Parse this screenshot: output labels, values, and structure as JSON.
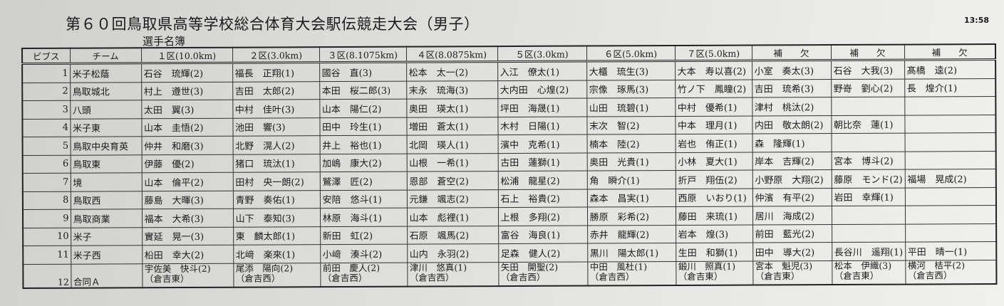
{
  "title": "第６０回鳥取県高等学校総合体育大会駅伝競走大会（男子）",
  "subtitle": "選手名簿",
  "time": "13:58",
  "headers": [
    "ビブス",
    "チーム",
    "１区(10.0km)",
    "２区(3.0km)",
    "３区(8.1075km)",
    "４区(8.0875km)",
    "５区(3.0km)",
    "６区(5.0km)",
    "７区(5.0km)",
    "補　　欠",
    "補　　欠",
    "補　　欠"
  ],
  "rows": [
    [
      "1",
      "米子松蔭",
      "石谷　琉輝(2)",
      "福長　正翔(1)",
      "國谷　直(3)",
      "松本　太一(2)",
      "入江　僚太(1)",
      "大櫃　琉生(3)",
      "大本　寿以喜(2)",
      "小室　奏太(3)",
      "石谷　大我(3)",
      "髙橋　逵(2)"
    ],
    [
      "2",
      "鳥取城北",
      "村上　遵世(3)",
      "吉田　太郎(2)",
      "本田　桜二郎(3)",
      "末永　琉海(3)",
      "大内田　心煌(2)",
      "宗像　琢馬(3)",
      "竹ノ下　鳳瞳(2)",
      "吉田　琉希(3)",
      "野嵜　劉心(2)",
      "長　煌介(1)"
    ],
    [
      "3",
      "八頭",
      "太田　翼(3)",
      "中村　佳叶(3)",
      "山本　陽仁(2)",
      "奥田　瑛太(1)",
      "坪田　海晟(1)",
      "山田　琉碧(1)",
      "中村　優希(1)",
      "津村　桃汰(2)",
      "",
      ""
    ],
    [
      "4",
      "米子東",
      "山本　圭悟(2)",
      "池田　響(3)",
      "田中　玲生(1)",
      "増田　蒼太(1)",
      "木村　日陽(1)",
      "末次　智(2)",
      "中本　理月(1)",
      "内田　敬太朗(2)",
      "朝比奈　蓮(1)",
      ""
    ],
    [
      "5",
      "鳥取中央育英",
      "仲井　和磨(3)",
      "北野　滉人(2)",
      "井上　裕也(1)",
      "北岡　瑛人(1)",
      "濱中　克希(1)",
      "楠本　陸(2)",
      "岩也　侑正(1)",
      "森　隆輝(1)",
      "",
      ""
    ],
    [
      "6",
      "鳥取東",
      "伊藤　優(2)",
      "猪口　琉汰(1)",
      "加嶋　康大(2)",
      "山根　一希(1)",
      "古田　蓮獅(1)",
      "奥田　光貴(1)",
      "小林　夏大(1)",
      "岸本　吉輝(2)",
      "宮本　博斗(2)",
      ""
    ],
    [
      "7",
      "境",
      "山本　倫平(2)",
      "田村　央一朗(2)",
      "鷲澤　匠(2)",
      "恩部　蒼空(2)",
      "松浦　龍星(2)",
      "角　瞬介(1)",
      "折戸　翔伍(2)",
      "小野原　大翔(2)",
      "藤原　モンド(2)",
      "福場　晃成(2)"
    ],
    [
      "8",
      "鳥取西",
      "藤島　大暉(3)",
      "青野　奏佑(1)",
      "安陪　悠斗(1)",
      "元鎌　颯志(2)",
      "石上　裕貴(2)",
      "森本　昌実(1)",
      "西原　いおり(1)",
      "仲濱　有平(2)",
      "岩田　幸輝(1)",
      ""
    ],
    [
      "9",
      "鳥取商業",
      "福本　大希(3)",
      "山下　泰知(3)",
      "林原　海斗(1)",
      "山本　彪裡(1)",
      "上根　多翔(2)",
      "勝原　彩希(2)",
      "藤田　来琉(1)",
      "居川　海成(2)",
      "",
      ""
    ],
    [
      "10",
      "米子",
      "實延　晃一(3)",
      "東　麟太郎(1)",
      "新田　虹(2)",
      "石原　颯馬(2)",
      "富谷　海良(1)",
      "赤井　龍輝(2)",
      "岩本　煌(3)",
      "前田　藍光(2)",
      "",
      ""
    ],
    [
      "11",
      "米子西",
      "柗田　幸大(2)",
      "北﨑　楽來(1)",
      "小﨑　湊斗(2)",
      "山内　永羽(2)",
      "足森　健人(2)",
      "黒川　陽太郎(1)",
      "生田　和獅(1)",
      "田中　導大(2)",
      "長谷川　遥翔(1)",
      "平田　晴一(1)"
    ],
    [
      "12",
      "合同Ａ",
      "宇佐美　快斗(2)\n（倉吉東）",
      "尾添　陽向(2)\n（倉吉西）",
      "前田　慶人(2)\n（倉吉西）",
      "津川　悠真(1)\n（倉吉西）",
      "矢田　開聖(2)\n（倉吉西）",
      "中田　風杜(1)\n（倉吉西）",
      "鍛川　照真(1)\n（倉吉東）",
      "宮本　魁児(3)\n（倉吉東）",
      "松本　伊織(3)\n（倉吉東）",
      "横河　桔平(2)\n（倉吉西）"
    ]
  ]
}
